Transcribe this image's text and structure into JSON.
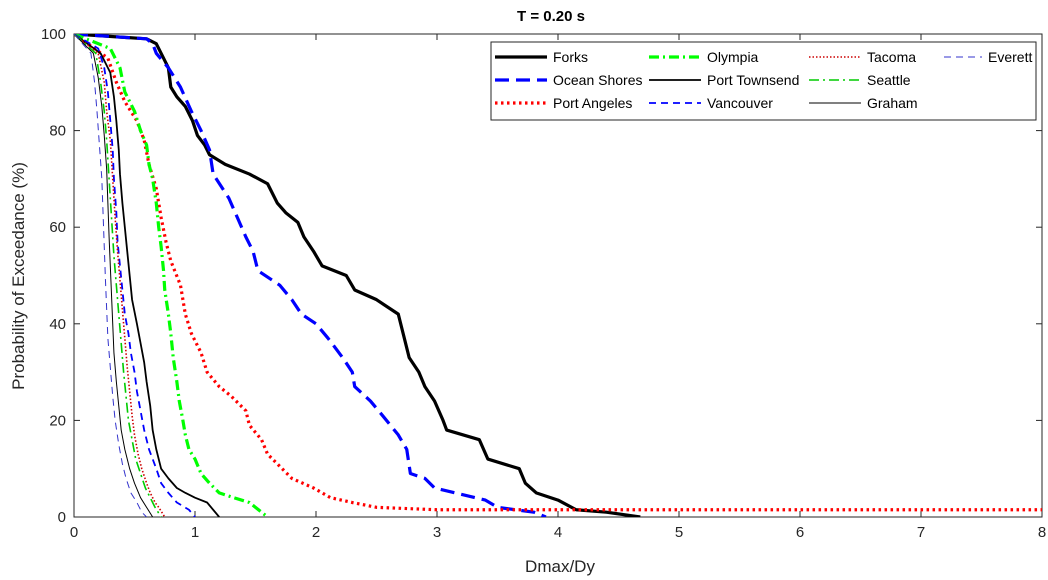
{
  "chart_data": {
    "type": "line",
    "title": "T = 0.20 s",
    "xlabel": "Dmax/Dy",
    "ylabel": "Probability of Exceedance (%)",
    "xlim": [
      0,
      8
    ],
    "ylim": [
      0,
      100
    ],
    "xticks": [
      "0",
      "1",
      "2",
      "3",
      "4",
      "5",
      "6",
      "7",
      "8"
    ],
    "yticks": [
      "0",
      "20",
      "40",
      "60",
      "80",
      "100"
    ],
    "grid": false,
    "legend_position": "top-right",
    "series": [
      {
        "name": "Forks",
        "color": "#000000",
        "style": "solid",
        "width": 3.2,
        "points": [
          [
            0,
            100
          ],
          [
            0.6,
            99
          ],
          [
            0.68,
            98
          ],
          [
            0.72,
            96
          ],
          [
            0.78,
            93
          ],
          [
            0.8,
            89
          ],
          [
            0.85,
            87
          ],
          [
            0.92,
            85
          ],
          [
            0.98,
            82
          ],
          [
            1.02,
            79
          ],
          [
            1.08,
            77
          ],
          [
            1.12,
            75
          ],
          [
            1.25,
            73
          ],
          [
            1.45,
            71
          ],
          [
            1.6,
            69
          ],
          [
            1.68,
            65
          ],
          [
            1.75,
            63
          ],
          [
            1.85,
            61
          ],
          [
            1.9,
            58
          ],
          [
            1.98,
            55
          ],
          [
            2.05,
            52
          ],
          [
            2.25,
            50
          ],
          [
            2.32,
            47
          ],
          [
            2.5,
            45
          ],
          [
            2.68,
            42
          ],
          [
            2.73,
            37
          ],
          [
            2.77,
            33
          ],
          [
            2.85,
            30
          ],
          [
            2.9,
            27
          ],
          [
            2.98,
            24
          ],
          [
            3.05,
            20
          ],
          [
            3.08,
            18
          ],
          [
            3.35,
            16
          ],
          [
            3.42,
            12
          ],
          [
            3.68,
            10
          ],
          [
            3.73,
            7
          ],
          [
            3.82,
            5
          ],
          [
            4.0,
            3.5
          ],
          [
            4.15,
            1.5
          ],
          [
            4.4,
            1
          ],
          [
            4.68,
            0
          ]
        ]
      },
      {
        "name": "Ocean Shores",
        "color": "#0000ff",
        "style": "longdash",
        "width": 3.2,
        "points": [
          [
            0,
            100
          ],
          [
            0.6,
            99
          ],
          [
            0.65,
            98
          ],
          [
            0.68,
            96
          ],
          [
            0.78,
            93
          ],
          [
            0.88,
            89
          ],
          [
            0.97,
            84
          ],
          [
            1.05,
            80
          ],
          [
            1.12,
            76
          ],
          [
            1.15,
            71
          ],
          [
            1.28,
            66
          ],
          [
            1.35,
            62
          ],
          [
            1.42,
            58
          ],
          [
            1.48,
            55
          ],
          [
            1.52,
            51
          ],
          [
            1.7,
            48
          ],
          [
            1.8,
            45
          ],
          [
            1.88,
            42
          ],
          [
            2.0,
            40
          ],
          [
            2.1,
            37
          ],
          [
            2.22,
            33
          ],
          [
            2.3,
            30
          ],
          [
            2.32,
            27
          ],
          [
            2.45,
            24
          ],
          [
            2.55,
            21
          ],
          [
            2.68,
            17
          ],
          [
            2.75,
            14
          ],
          [
            2.78,
            9
          ],
          [
            2.9,
            8
          ],
          [
            2.98,
            6
          ],
          [
            3.15,
            5
          ],
          [
            3.4,
            3.5
          ],
          [
            3.5,
            2
          ],
          [
            3.8,
            1
          ],
          [
            3.9,
            0
          ]
        ]
      },
      {
        "name": "Port Angeles",
        "color": "#ff0000",
        "style": "dotted",
        "width": 3.2,
        "points": [
          [
            0,
            100
          ],
          [
            0.28,
            95
          ],
          [
            0.35,
            90
          ],
          [
            0.42,
            86
          ],
          [
            0.52,
            82
          ],
          [
            0.58,
            78
          ],
          [
            0.62,
            73
          ],
          [
            0.68,
            68
          ],
          [
            0.72,
            62
          ],
          [
            0.76,
            57
          ],
          [
            0.8,
            53
          ],
          [
            0.88,
            48
          ],
          [
            0.92,
            42
          ],
          [
            0.97,
            38
          ],
          [
            1.05,
            34
          ],
          [
            1.1,
            30
          ],
          [
            1.2,
            27
          ],
          [
            1.3,
            25
          ],
          [
            1.42,
            22
          ],
          [
            1.45,
            19
          ],
          [
            1.55,
            16
          ],
          [
            1.6,
            13
          ],
          [
            1.72,
            10
          ],
          [
            1.8,
            8
          ],
          [
            1.98,
            6
          ],
          [
            2.12,
            4
          ],
          [
            2.3,
            3
          ],
          [
            2.5,
            2
          ],
          [
            3.0,
            1.5
          ],
          [
            8.0,
            1.5
          ]
        ]
      },
      {
        "name": "Olympia",
        "color": "#00ff00",
        "style": "dashdot",
        "width": 3.2,
        "points": [
          [
            0,
            100
          ],
          [
            0.3,
            97
          ],
          [
            0.38,
            93
          ],
          [
            0.42,
            88
          ],
          [
            0.5,
            84
          ],
          [
            0.55,
            80
          ],
          [
            0.6,
            77
          ],
          [
            0.62,
            73
          ],
          [
            0.65,
            70
          ],
          [
            0.68,
            65
          ],
          [
            0.7,
            60
          ],
          [
            0.72,
            56
          ],
          [
            0.74,
            51
          ],
          [
            0.75,
            47
          ],
          [
            0.78,
            42
          ],
          [
            0.8,
            38
          ],
          [
            0.82,
            33
          ],
          [
            0.85,
            28
          ],
          [
            0.87,
            24
          ],
          [
            0.9,
            20
          ],
          [
            0.92,
            17
          ],
          [
            0.95,
            14
          ],
          [
            1.0,
            12
          ],
          [
            1.05,
            9
          ],
          [
            1.12,
            7
          ],
          [
            1.2,
            5
          ],
          [
            1.32,
            4
          ],
          [
            1.45,
            3
          ],
          [
            1.5,
            2
          ],
          [
            1.6,
            0
          ]
        ]
      },
      {
        "name": "Port Townsend",
        "color": "#000000",
        "style": "solid",
        "width": 1.8,
        "points": [
          [
            0,
            100
          ],
          [
            0.22,
            96
          ],
          [
            0.3,
            92
          ],
          [
            0.33,
            87
          ],
          [
            0.35,
            82
          ],
          [
            0.37,
            76
          ],
          [
            0.38,
            71
          ],
          [
            0.4,
            65
          ],
          [
            0.42,
            60
          ],
          [
            0.44,
            55
          ],
          [
            0.46,
            50
          ],
          [
            0.48,
            45
          ],
          [
            0.52,
            40
          ],
          [
            0.55,
            36
          ],
          [
            0.58,
            32
          ],
          [
            0.6,
            28
          ],
          [
            0.63,
            23
          ],
          [
            0.65,
            18
          ],
          [
            0.68,
            14
          ],
          [
            0.72,
            10
          ],
          [
            0.78,
            8
          ],
          [
            0.85,
            6
          ],
          [
            0.92,
            5
          ],
          [
            1.0,
            4
          ],
          [
            1.1,
            3
          ],
          [
            1.15,
            1.5
          ],
          [
            1.2,
            0
          ]
        ]
      },
      {
        "name": "Vancouver",
        "color": "#0000ff",
        "style": "dashed",
        "width": 1.8,
        "points": [
          [
            0,
            100
          ],
          [
            0.2,
            97
          ],
          [
            0.25,
            93
          ],
          [
            0.28,
            88
          ],
          [
            0.3,
            82
          ],
          [
            0.32,
            76
          ],
          [
            0.33,
            70
          ],
          [
            0.35,
            63
          ],
          [
            0.36,
            57
          ],
          [
            0.38,
            52
          ],
          [
            0.4,
            47
          ],
          [
            0.42,
            42
          ],
          [
            0.45,
            38
          ],
          [
            0.47,
            34
          ],
          [
            0.5,
            30
          ],
          [
            0.52,
            26
          ],
          [
            0.55,
            22
          ],
          [
            0.58,
            18
          ],
          [
            0.62,
            14
          ],
          [
            0.68,
            10
          ],
          [
            0.72,
            7
          ],
          [
            0.78,
            5
          ],
          [
            0.85,
            3
          ],
          [
            0.95,
            1.5
          ],
          [
            1.0,
            0
          ]
        ]
      },
      {
        "name": "Tacoma",
        "color": "#cc0000",
        "style": "finedot",
        "width": 1.6,
        "points": [
          [
            0,
            100
          ],
          [
            0.2,
            96
          ],
          [
            0.25,
            90
          ],
          [
            0.27,
            84
          ],
          [
            0.3,
            78
          ],
          [
            0.32,
            70
          ],
          [
            0.34,
            62
          ],
          [
            0.36,
            55
          ],
          [
            0.38,
            49
          ],
          [
            0.4,
            43
          ],
          [
            0.42,
            37
          ],
          [
            0.44,
            31
          ],
          [
            0.46,
            26
          ],
          [
            0.48,
            21
          ],
          [
            0.5,
            17
          ],
          [
            0.53,
            13
          ],
          [
            0.56,
            10
          ],
          [
            0.6,
            7
          ],
          [
            0.63,
            5
          ],
          [
            0.67,
            3
          ],
          [
            0.7,
            2
          ],
          [
            0.75,
            0
          ]
        ]
      },
      {
        "name": "Seattle",
        "color": "#00cc00",
        "style": "dashdot",
        "width": 1.6,
        "points": [
          [
            0,
            100
          ],
          [
            0.18,
            96
          ],
          [
            0.22,
            90
          ],
          [
            0.25,
            84
          ],
          [
            0.27,
            78
          ],
          [
            0.29,
            70
          ],
          [
            0.31,
            62
          ],
          [
            0.33,
            54
          ],
          [
            0.35,
            48
          ],
          [
            0.37,
            42
          ],
          [
            0.39,
            36
          ],
          [
            0.41,
            30
          ],
          [
            0.43,
            25
          ],
          [
            0.45,
            20
          ],
          [
            0.48,
            16
          ],
          [
            0.51,
            12
          ],
          [
            0.55,
            9
          ],
          [
            0.59,
            6
          ],
          [
            0.63,
            4
          ],
          [
            0.67,
            2
          ],
          [
            0.72,
            0
          ]
        ]
      },
      {
        "name": "Graham",
        "color": "#000000",
        "style": "solid",
        "width": 1.0,
        "points": [
          [
            0,
            100
          ],
          [
            0.16,
            96
          ],
          [
            0.2,
            91
          ],
          [
            0.23,
            85
          ],
          [
            0.25,
            79
          ],
          [
            0.27,
            72
          ],
          [
            0.28,
            65
          ],
          [
            0.29,
            58
          ],
          [
            0.3,
            52
          ],
          [
            0.31,
            46
          ],
          [
            0.32,
            40
          ],
          [
            0.33,
            34
          ],
          [
            0.35,
            28
          ],
          [
            0.37,
            23
          ],
          [
            0.39,
            18
          ],
          [
            0.42,
            14
          ],
          [
            0.46,
            10
          ],
          [
            0.5,
            7
          ],
          [
            0.55,
            4
          ],
          [
            0.6,
            2
          ],
          [
            0.65,
            0
          ]
        ]
      },
      {
        "name": "Everett",
        "color": "#3333cc",
        "style": "dashed",
        "width": 1.0,
        "points": [
          [
            0,
            100
          ],
          [
            0.14,
            96
          ],
          [
            0.17,
            90
          ],
          [
            0.19,
            84
          ],
          [
            0.21,
            77
          ],
          [
            0.23,
            70
          ],
          [
            0.24,
            63
          ],
          [
            0.25,
            56
          ],
          [
            0.26,
            49
          ],
          [
            0.27,
            43
          ],
          [
            0.28,
            37
          ],
          [
            0.3,
            31
          ],
          [
            0.32,
            25
          ],
          [
            0.34,
            20
          ],
          [
            0.37,
            15
          ],
          [
            0.4,
            11
          ],
          [
            0.43,
            8
          ],
          [
            0.47,
            5
          ],
          [
            0.52,
            3
          ],
          [
            0.56,
            1
          ],
          [
            0.6,
            0
          ]
        ]
      }
    ]
  }
}
